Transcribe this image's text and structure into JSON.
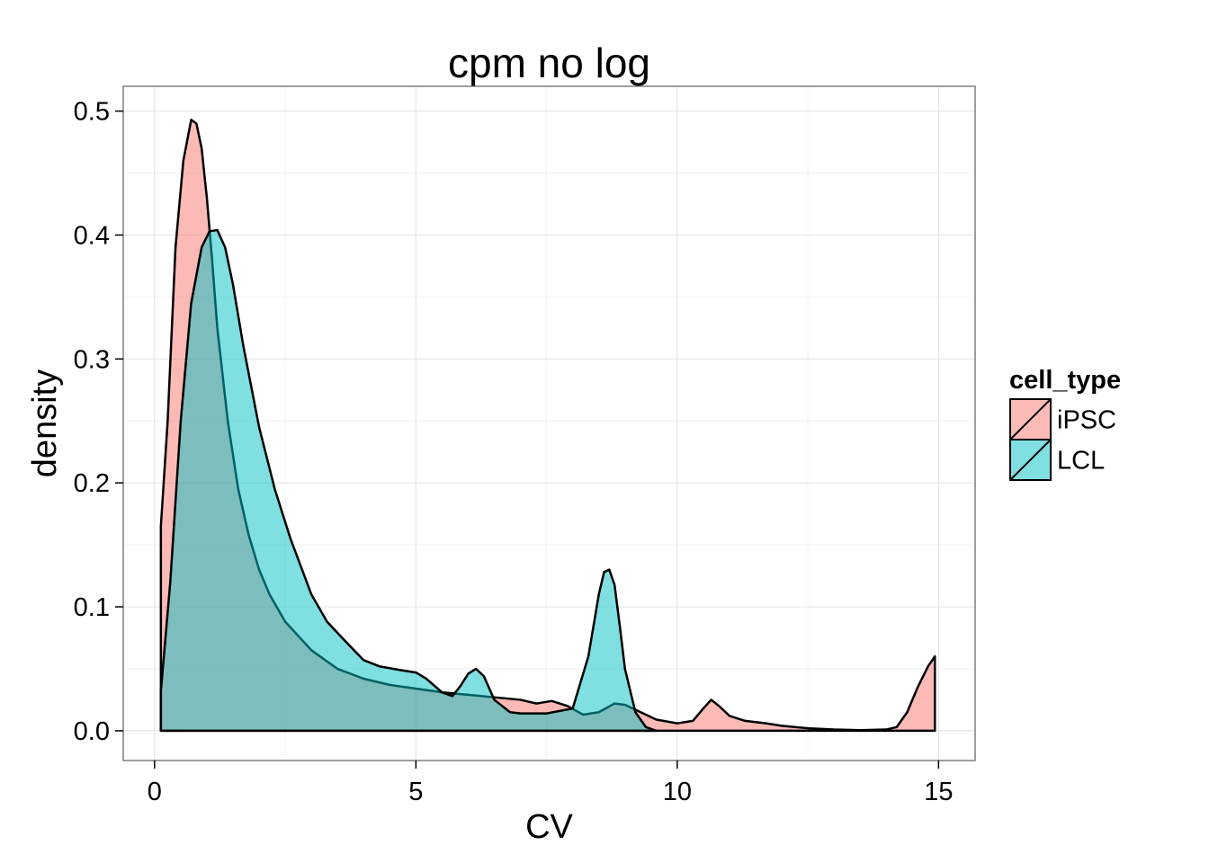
{
  "chart_data": {
    "type": "area",
    "title": "cpm no log",
    "xlabel": "CV",
    "ylabel": "density",
    "xlim": [
      -0.6,
      15.7
    ],
    "ylim": [
      -0.024,
      0.52
    ],
    "x_ticks": [
      0,
      5,
      10,
      15
    ],
    "x_tick_labels": [
      "0",
      "5",
      "10",
      "15"
    ],
    "y_ticks": [
      0.0,
      0.1,
      0.2,
      0.3,
      0.4,
      0.5
    ],
    "y_tick_labels": [
      "0.0",
      "0.1",
      "0.2",
      "0.3",
      "0.4",
      "0.5"
    ],
    "grid": true,
    "legend": {
      "title": "cell_type",
      "position": "right"
    },
    "series": [
      {
        "name": "iPSC",
        "color": "#F8766D",
        "x": [
          0.12,
          0.25,
          0.4,
          0.55,
          0.7,
          0.8,
          0.9,
          1.0,
          1.1,
          1.2,
          1.4,
          1.6,
          1.8,
          2.0,
          2.2,
          2.5,
          3.0,
          3.5,
          4.0,
          4.5,
          5.0,
          5.5,
          6.0,
          6.5,
          7.0,
          7.3,
          7.6,
          7.9,
          8.2,
          8.5,
          8.8,
          9.0,
          9.3,
          9.6,
          10.0,
          10.3,
          10.5,
          10.65,
          10.8,
          11.0,
          11.3,
          11.7,
          12.0,
          12.5,
          13.0,
          13.5,
          14.0,
          14.2,
          14.4,
          14.6,
          14.8,
          14.93
        ],
        "y": [
          0.165,
          0.25,
          0.39,
          0.46,
          0.493,
          0.49,
          0.47,
          0.43,
          0.38,
          0.325,
          0.25,
          0.195,
          0.158,
          0.13,
          0.11,
          0.088,
          0.065,
          0.05,
          0.042,
          0.037,
          0.034,
          0.031,
          0.029,
          0.027,
          0.025,
          0.022,
          0.024,
          0.02,
          0.013,
          0.015,
          0.022,
          0.021,
          0.015,
          0.009,
          0.006,
          0.008,
          0.018,
          0.025,
          0.02,
          0.012,
          0.008,
          0.006,
          0.004,
          0.002,
          0.001,
          0.0005,
          0.001,
          0.003,
          0.015,
          0.035,
          0.052,
          0.06
        ]
      },
      {
        "name": "LCL",
        "color": "#00BFC4",
        "x": [
          0.12,
          0.3,
          0.5,
          0.7,
          0.9,
          1.05,
          1.2,
          1.35,
          1.5,
          1.7,
          2.0,
          2.3,
          2.6,
          3.0,
          3.3,
          3.7,
          4.0,
          4.3,
          4.7,
          5.0,
          5.2,
          5.5,
          5.7,
          5.85,
          6.0,
          6.15,
          6.3,
          6.5,
          6.8,
          7.0,
          7.5,
          8.0,
          8.3,
          8.5,
          8.6,
          8.7,
          8.8,
          8.9,
          9.0,
          9.2,
          9.4,
          9.6
        ],
        "y": [
          0.032,
          0.12,
          0.25,
          0.345,
          0.39,
          0.403,
          0.404,
          0.39,
          0.36,
          0.31,
          0.245,
          0.195,
          0.155,
          0.11,
          0.088,
          0.07,
          0.057,
          0.052,
          0.049,
          0.047,
          0.042,
          0.031,
          0.028,
          0.036,
          0.046,
          0.05,
          0.044,
          0.025,
          0.015,
          0.014,
          0.014,
          0.018,
          0.06,
          0.11,
          0.128,
          0.13,
          0.118,
          0.085,
          0.05,
          0.015,
          0.003,
          0.0
        ]
      }
    ]
  }
}
